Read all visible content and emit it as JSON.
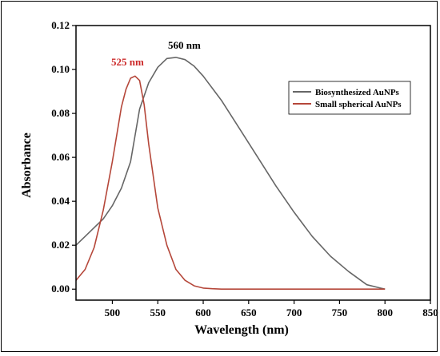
{
  "chart_data": {
    "type": "line",
    "xlabel": "Wavelength (nm)",
    "ylabel": "Absorbance",
    "xlim": [
      460,
      850
    ],
    "ylim": [
      -0.005,
      0.12
    ],
    "xticks": [
      500,
      550,
      600,
      650,
      700,
      750,
      800,
      850
    ],
    "yticks": [
      0.0,
      0.02,
      0.04,
      0.06,
      0.08,
      0.1,
      0.12
    ],
    "ytick_labels": [
      "0.00",
      "0.02",
      "0.04",
      "0.06",
      "0.08",
      "0.10",
      "0.12"
    ],
    "legend_position": "upper-right",
    "series": [
      {
        "name": "Biosynthesized AuNPs",
        "color": "#666666",
        "x": [
          460,
          470,
          480,
          490,
          500,
          510,
          520,
          530,
          540,
          550,
          560,
          570,
          580,
          590,
          600,
          620,
          640,
          660,
          680,
          700,
          720,
          740,
          760,
          780,
          795,
          800
        ],
        "y": [
          0.02,
          0.024,
          0.028,
          0.032,
          0.038,
          0.046,
          0.058,
          0.082,
          0.094,
          0.101,
          0.105,
          0.1055,
          0.1045,
          0.1015,
          0.097,
          0.086,
          0.073,
          0.06,
          0.047,
          0.035,
          0.024,
          0.015,
          0.008,
          0.002,
          0.0005,
          0.0
        ]
      },
      {
        "name": "Small spherical AuNPs",
        "color": "#b5473a",
        "x": [
          460,
          470,
          480,
          490,
          500,
          510,
          515,
          520,
          525,
          530,
          535,
          540,
          550,
          560,
          570,
          580,
          590,
          600,
          610,
          620,
          650,
          700,
          750,
          800
        ],
        "y": [
          0.004,
          0.009,
          0.019,
          0.036,
          0.058,
          0.083,
          0.091,
          0.096,
          0.097,
          0.095,
          0.084,
          0.066,
          0.037,
          0.02,
          0.009,
          0.004,
          0.0015,
          0.0005,
          0.0002,
          0.0,
          0.0,
          0.0,
          0.0,
          0.0
        ]
      }
    ],
    "annotations": [
      {
        "text": "560 nm",
        "color": "#000000"
      },
      {
        "text": "525 nm",
        "color": "#cc2a2a"
      }
    ]
  }
}
